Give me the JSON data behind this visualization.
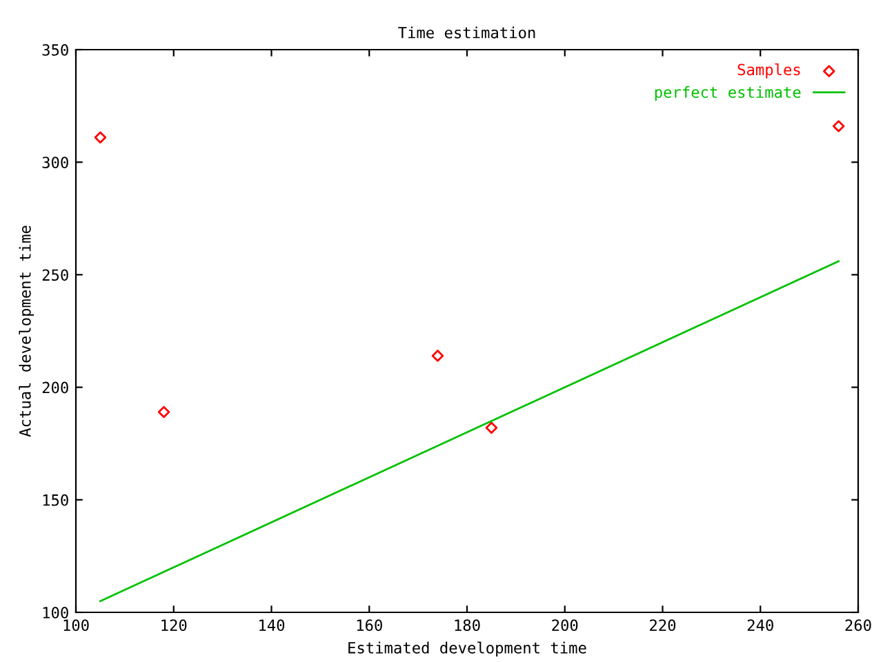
{
  "chart_data": {
    "type": "scatter",
    "title": "Time estimation",
    "xlabel": "Estimated development time",
    "ylabel": "Actual development time",
    "series": [
      {
        "name": "Samples",
        "color": "#ff0000",
        "marker": "diamond",
        "x": [
          105,
          118,
          174,
          185,
          256
        ],
        "values": [
          311,
          189,
          214,
          182,
          316
        ]
      },
      {
        "name": "perfect estimate",
        "type": "line",
        "color": "#00c000",
        "marker": "none",
        "line_style": "solid",
        "x": [
          105,
          256
        ],
        "values": [
          105,
          256
        ]
      }
    ],
    "xlim": [
      100,
      260
    ],
    "xticks": [
      100,
      120,
      140,
      160,
      180,
      200,
      220,
      240,
      260
    ],
    "ylim": [
      100,
      350
    ],
    "yticks": [
      100,
      150,
      200,
      250,
      300,
      350
    ],
    "grid": false,
    "legend": "top right"
  }
}
